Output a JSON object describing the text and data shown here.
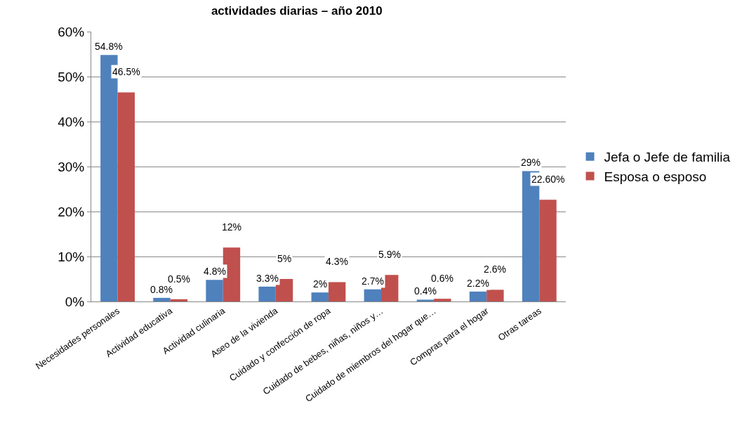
{
  "chart_data": {
    "type": "bar",
    "title": "actividades diarias – año 2010",
    "categories": [
      "Necesidades personales",
      "Actividad educativa",
      "Actividad culinaria",
      "Aseo de la vivienda",
      "Cuidado y confección de ropa",
      "Cuidado de bebes, niñas, niños y…",
      "Cuidado de miembros del hogar que…",
      "Compras para el hogar",
      "Otras tareas"
    ],
    "series": [
      {
        "name": "Jefa o Jefe de familia",
        "color": "#4f81bd",
        "values": [
          54.8,
          0.8,
          4.8,
          3.3,
          2,
          2.7,
          0.4,
          2.2,
          29
        ],
        "value_labels": [
          "54.8%",
          "0.8%",
          "4.8%",
          "3.3%",
          "2%",
          "2.7%",
          "0.4%",
          "2.2%",
          "29%"
        ]
      },
      {
        "name": "Esposa o esposo",
        "color": "#c0504d",
        "values": [
          46.5,
          0.5,
          12,
          5,
          4.3,
          5.9,
          0.6,
          2.6,
          22.6
        ],
        "value_labels": [
          "46.5%",
          "0.5%",
          "12%",
          "5%",
          "4.3%",
          "5.9%",
          "0.6%",
          "2.6%",
          "22.60%"
        ]
      }
    ],
    "ylim": [
      0,
      60
    ],
    "yticks": [
      {
        "value": 0,
        "label": "0%"
      },
      {
        "value": 10,
        "label": "10%"
      },
      {
        "value": 20,
        "label": "20%"
      },
      {
        "value": 30,
        "label": "30%"
      },
      {
        "value": 40,
        "label": "40%"
      },
      {
        "value": 50,
        "label": "50%"
      },
      {
        "value": 60,
        "label": "60%"
      }
    ],
    "grid": "y",
    "legend": "right"
  }
}
